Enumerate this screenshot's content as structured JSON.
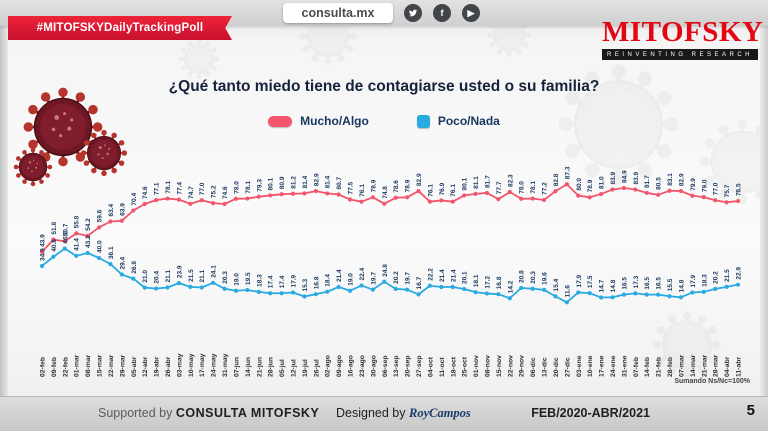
{
  "header": {
    "badge": "#MITOFSKYDailyTrackingPoll",
    "site": "consulta.mx",
    "social": [
      "twitter",
      "facebook",
      "youtube"
    ],
    "logo": "MITOFSKY",
    "logo_tagline": "REINVENTING RESEARCH"
  },
  "title": "¿Qué tanto miedo tiene de contagiarse usted o su familia?",
  "legend": [
    {
      "label": "Mucho/Algo",
      "color": "#f2566d"
    },
    {
      "label": "Poco/Nada",
      "color": "#29abe2"
    }
  ],
  "note": "Sumando Ns/Nc=100%",
  "footer": {
    "supported_prefix": "Supported by",
    "supported_brand": "CONSULTA  MITOFSKY",
    "designed_prefix": "Designed by",
    "designed_brand": "RoyCampos",
    "period": "FEB/2020-ABR/2021",
    "page": "5"
  },
  "chart_data": {
    "type": "line",
    "title": "¿Qué tanto miedo tiene de contagiarse usted o su familia?",
    "xlabel": "",
    "ylabel": "",
    "ylim": [
      0,
      100
    ],
    "grid": false,
    "legend_position": "top",
    "value_labels_rotated": true,
    "x": [
      "02-feb",
      "09-feb",
      "22-feb",
      "01-mar",
      "08-mar",
      "15-mar",
      "22-mar",
      "29-mar",
      "05-abr",
      "12-abr",
      "19-abr",
      "26-abr",
      "03-may",
      "10-may",
      "17-may",
      "24-may",
      "31-may",
      "07-jun",
      "14-jun",
      "21-jun",
      "28-jun",
      "05-jul",
      "12-jul",
      "19-jul",
      "26-jul",
      "02-ago",
      "09-ago",
      "16-ago",
      "23-ago",
      "30-ago",
      "06-sep",
      "13-sep",
      "20-sep",
      "27-sep",
      "04-oct",
      "11-oct",
      "18-oct",
      "25-oct",
      "01-nov",
      "08-nov",
      "15-nov",
      "22-nov",
      "29-nov",
      "06-dic",
      "13-dic",
      "20-dic",
      "27-dic",
      "03-ene",
      "10-ene",
      "17-ene",
      "24-ene",
      "31-ene",
      "07-feb",
      "14-feb",
      "21-feb",
      "28-feb",
      "07-mar",
      "14-mar",
      "21-mar",
      "28-mar",
      "04-abr",
      "11-abr"
    ],
    "series": [
      {
        "name": "Mucho/Algo",
        "color": "#f2566d",
        "values": [
          43.9,
          51.8,
          50.7,
          55.8,
          54.2,
          59.6,
          63.4,
          63.9,
          70.4,
          74.6,
          77.1,
          78.1,
          77.4,
          74.7,
          77.0,
          75.2,
          74.6,
          78.0,
          78.1,
          79.3,
          80.1,
          80.9,
          81.2,
          81.4,
          82.9,
          81.4,
          80.7,
          77.5,
          76.1,
          78.9,
          74.8,
          78.6,
          78.9,
          82.9,
          76.1,
          76.9,
          76.1,
          80.1,
          81.1,
          81.7,
          77.7,
          82.3,
          78.0,
          78.1,
          77.2,
          82.8,
          87.3,
          80.0,
          78.9,
          81.0,
          83.9,
          84.9,
          83.9,
          81.7,
          80.5,
          83.1,
          82.9,
          79.9,
          79.0,
          77.0,
          75.7,
          76.5
        ]
      },
      {
        "name": "Poco/Nada",
        "color": "#29abe2",
        "values": [
          34.9,
          40.8,
          46.0,
          41.4,
          43.2,
          40.0,
          36.1,
          29.4,
          26.8,
          21.0,
          20.4,
          21.1,
          23.9,
          21.5,
          21.1,
          24.1,
          20.3,
          19.0,
          19.5,
          18.3,
          17.4,
          17.4,
          17.9,
          15.3,
          16.8,
          18.4,
          21.4,
          19.0,
          22.4,
          19.7,
          24.8,
          20.2,
          19.7,
          16.7,
          22.2,
          21.4,
          21.4,
          20.1,
          18.1,
          17.2,
          16.8,
          14.2,
          20.8,
          20.3,
          19.6,
          15.4,
          11.6,
          17.9,
          17.5,
          14.7,
          14.8,
          16.5,
          17.3,
          16.5,
          16.5,
          15.5,
          14.8,
          17.9,
          18.3,
          20.2,
          21.5,
          22.9
        ]
      }
    ]
  }
}
